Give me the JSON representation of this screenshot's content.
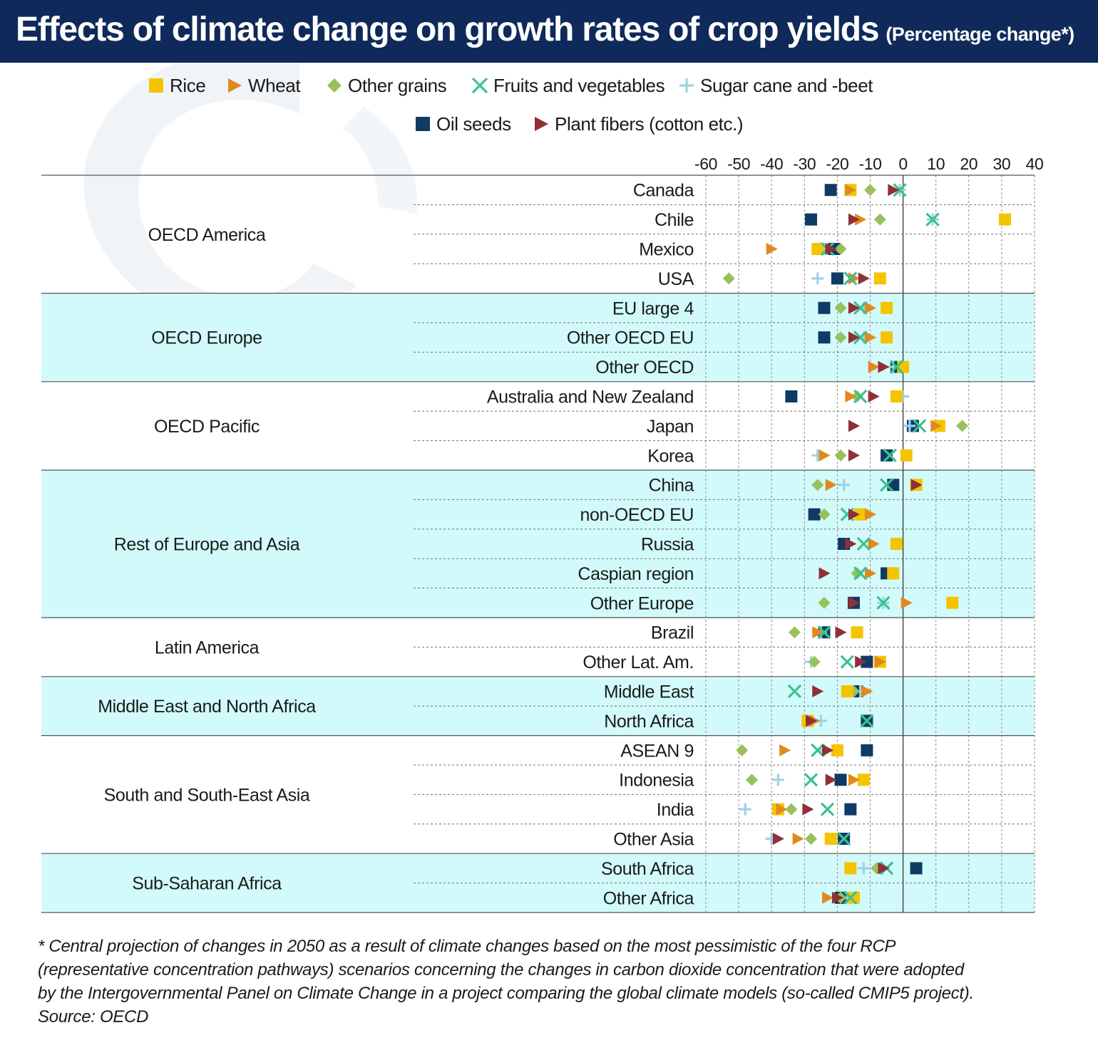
{
  "title": "Effects of climate change on growth rates of crop yields",
  "subtitle": "(Percentage change*)",
  "footnote": {
    "lines": [
      "* Central projection of changes in 2050 as a result of climate changes based on the most pessimistic of the four RCP",
      "(representative concentration pathways) scenarios concerning the changes in carbon dioxide concentration that were adopted",
      "by the Intergovernmental Panel on Climate Change in a project comparing the global climate models (so-called CMIP5 project).",
      "Source: OECD"
    ]
  },
  "chart_data": {
    "type": "scatter",
    "xlim": [
      -60,
      40
    ],
    "xticks": [
      -60,
      -50,
      -40,
      -30,
      -20,
      -10,
      0,
      10,
      20,
      30,
      40
    ],
    "grid": true,
    "legend_position": "top",
    "series": [
      {
        "name": "Rice",
        "key": "rice",
        "marker": "square",
        "color": "#f5c400"
      },
      {
        "name": "Wheat",
        "key": "wheat",
        "marker": "triangle-right",
        "color": "#e08a1e"
      },
      {
        "name": "Other grains",
        "key": "grains",
        "marker": "diamond",
        "color": "#97c15c"
      },
      {
        "name": "Fruits and vegetables",
        "key": "fruits",
        "marker": "x",
        "color": "#3cc18f"
      },
      {
        "name": "Sugar cane and -beet",
        "key": "sugar",
        "marker": "plus",
        "color": "#9fd2e6"
      },
      {
        "name": "Oil seeds",
        "key": "oil",
        "marker": "square",
        "color": "#0f3a66"
      },
      {
        "name": "Plant fibers (cotton etc.)",
        "key": "fibers",
        "marker": "triangle-right",
        "color": "#8f3037"
      }
    ],
    "groups": [
      {
        "name": "OECD America",
        "shaded": false,
        "rows": [
          {
            "label": "Canada",
            "rice": -16,
            "wheat": -16,
            "grains": -10,
            "fruits": -1,
            "sugar": -1,
            "oil": -22,
            "fibers": -3
          },
          {
            "label": "Chile",
            "rice": 31,
            "wheat": -13,
            "grains": -7,
            "fruits": 9,
            "sugar": 9,
            "oil": -28,
            "fibers": -15
          },
          {
            "label": "Mexico",
            "rice": -26,
            "wheat": -40,
            "grains": -19,
            "fruits": -23,
            "sugar": -24,
            "oil": -21,
            "fibers": -22
          },
          {
            "label": "USA",
            "rice": -7,
            "wheat": -15,
            "grains": -53,
            "fruits": -16,
            "sugar": -26,
            "oil": -20,
            "fibers": -12
          }
        ]
      },
      {
        "name": "OECD Europe",
        "shaded": true,
        "rows": [
          {
            "label": "EU large 4",
            "rice": -5,
            "wheat": -10,
            "grains": -19,
            "fruits": -13,
            "sugar": -12,
            "oil": -24,
            "fibers": -15
          },
          {
            "label": "Other OECD  EU",
            "rice": -5,
            "wheat": -10,
            "grains": -19,
            "fruits": -13,
            "sugar": -12,
            "oil": -24,
            "fibers": -15
          },
          {
            "label": "Other OECD",
            "rice": 0,
            "wheat": -9,
            "grains": 0,
            "fruits": -2,
            "sugar": -3,
            "oil": -2,
            "fibers": -6
          }
        ]
      },
      {
        "name": "OECD Pacific",
        "shaded": false,
        "rows": [
          {
            "label": "Australia and New Zealand",
            "rice": -2,
            "wheat": -16,
            "grains": -14,
            "fruits": -13,
            "sugar": 0,
            "oil": -34,
            "fibers": -9
          },
          {
            "label": "Japan",
            "rice": 11,
            "wheat": 10,
            "grains": 18,
            "fruits": 5,
            "sugar": 2,
            "oil": 3,
            "fibers": -15
          },
          {
            "label": "Korea",
            "rice": 1,
            "wheat": -24,
            "grains": -19,
            "fruits": -4,
            "sugar": -26,
            "oil": -5,
            "fibers": -15
          }
        ]
      },
      {
        "name": "Rest of Europe and Asia",
        "shaded": true,
        "rows": [
          {
            "label": "China",
            "rice": 4,
            "wheat": -22,
            "grains": -26,
            "fruits": -5,
            "sugar": -18,
            "oil": -3,
            "fibers": 4
          },
          {
            "label": "non-OECD EU",
            "rice": -13,
            "wheat": -10,
            "grains": -24,
            "fruits": -17,
            "sugar": -14,
            "oil": -27,
            "fibers": -15
          },
          {
            "label": "Russia",
            "rice": -2,
            "wheat": -9,
            "grains": -2,
            "fruits": -12,
            "sugar": -2,
            "oil": -18,
            "fibers": -16
          },
          {
            "label": "Caspian region",
            "rice": -3,
            "wheat": -10,
            "grains": -14,
            "fruits": -13,
            "sugar": -3,
            "oil": -5,
            "fibers": -24
          },
          {
            "label": "Other Europe",
            "rice": 15,
            "wheat": 1,
            "grains": -24,
            "fruits": -6,
            "sugar": -6,
            "oil": -15,
            "fibers": -15
          }
        ]
      },
      {
        "name": "Latin America",
        "shaded": false,
        "rows": [
          {
            "label": "Brazil",
            "rice": -14,
            "wheat": -26,
            "grains": -33,
            "fruits": -24,
            "sugar": -25,
            "oil": -24,
            "fibers": -19
          },
          {
            "label": "Other Lat. Am.",
            "rice": -7,
            "wheat": -7,
            "grains": -27,
            "fruits": -17,
            "sugar": -28,
            "oil": -11,
            "fibers": -13
          }
        ]
      },
      {
        "name": "Middle East and North Africa",
        "shaded": true,
        "rows": [
          {
            "label": "Middle East",
            "rice": -17,
            "wheat": -11,
            "grains": -15,
            "fruits": -33,
            "sugar": -13,
            "oil": -14,
            "fibers": -26
          },
          {
            "label": "North Africa",
            "rice": -29,
            "wheat": -27,
            "grains": -28,
            "fruits": -11,
            "sugar": -25,
            "oil": -11,
            "fibers": -28
          }
        ]
      },
      {
        "name": "South and South-East Asia",
        "shaded": false,
        "rows": [
          {
            "label": "ASEAN 9",
            "rice": -20,
            "wheat": -36,
            "grains": -49,
            "fruits": -26,
            "sugar": -24,
            "oil": -11,
            "fibers": -23
          },
          {
            "label": "Indonesia",
            "rice": -12,
            "wheat": -15,
            "grains": -46,
            "fruits": -28,
            "sugar": -38,
            "oil": -19,
            "fibers": -22
          },
          {
            "label": "India",
            "rice": -38,
            "wheat": -37,
            "grains": -34,
            "fruits": -23,
            "sugar": -48,
            "oil": -16,
            "fibers": -29
          },
          {
            "label": "Other Asia",
            "rice": -22,
            "wheat": -32,
            "grains": -28,
            "fruits": -18,
            "sugar": -40,
            "oil": -18,
            "fibers": -38
          }
        ]
      },
      {
        "name": "Sub-Saharan Africa",
        "shaded": true,
        "rows": [
          {
            "label": "South Africa",
            "rice": -16,
            "wheat": -6,
            "grains": -8,
            "fruits": -5,
            "sugar": -12,
            "oil": 4,
            "fibers": -6
          },
          {
            "label": "Other Africa",
            "rice": -15,
            "wheat": -23,
            "grains": -19,
            "fruits": -16,
            "sugar": -17,
            "oil": -19,
            "fibers": -20
          }
        ]
      }
    ]
  }
}
